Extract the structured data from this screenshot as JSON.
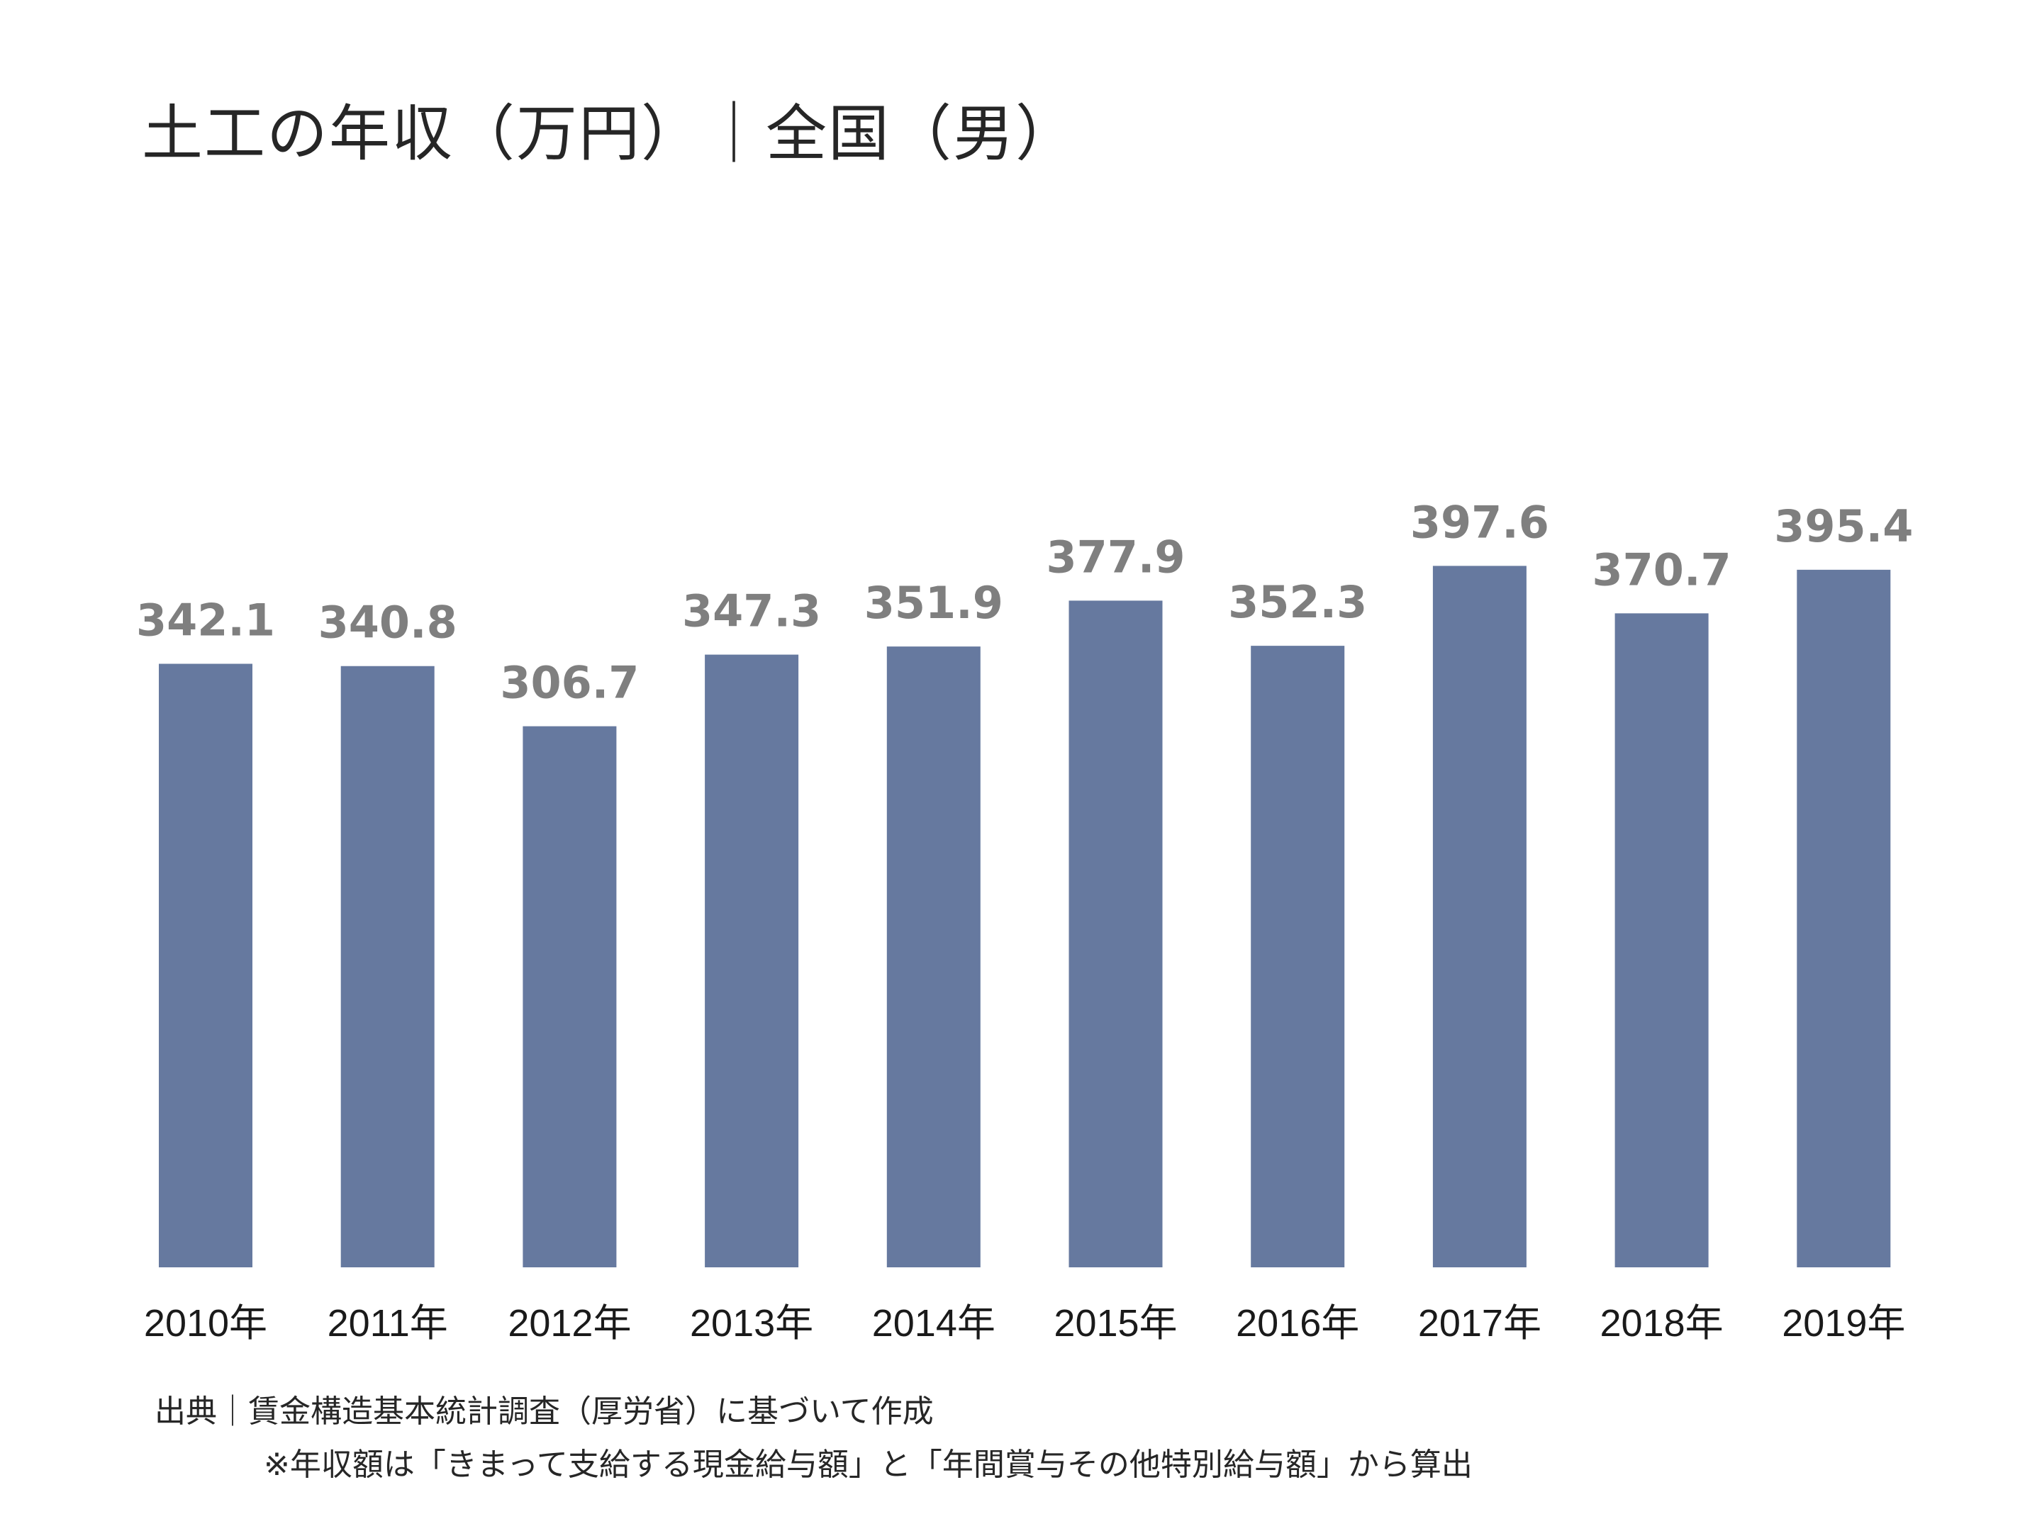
{
  "chart_data": {
    "type": "bar",
    "title": "土工の年収（万円）｜全国（男）",
    "categories": [
      "2010年",
      "2011年",
      "2012年",
      "2013年",
      "2014年",
      "2015年",
      "2016年",
      "2017年",
      "2018年",
      "2019年"
    ],
    "values": [
      342.1,
      340.8,
      306.7,
      347.3,
      351.9,
      377.9,
      352.3,
      397.6,
      370.7,
      395.4
    ],
    "value_labels": [
      "342.1",
      "340.8",
      "306.7",
      "347.3",
      "351.9",
      "377.9",
      "352.3",
      "397.6",
      "370.7",
      "395.4"
    ],
    "ylim": [
      0,
      450
    ],
    "grid": false,
    "legend": "none",
    "bar_color": "#66799f",
    "label_color": "#7f7f7f"
  },
  "footer": {
    "source": "出典｜賃金構造基本統計調査（厚労省）に基づいて作成",
    "note": "※年収額は「きまって支給する現金給与額」と「年間賞与その他特別給与額」から算出"
  }
}
